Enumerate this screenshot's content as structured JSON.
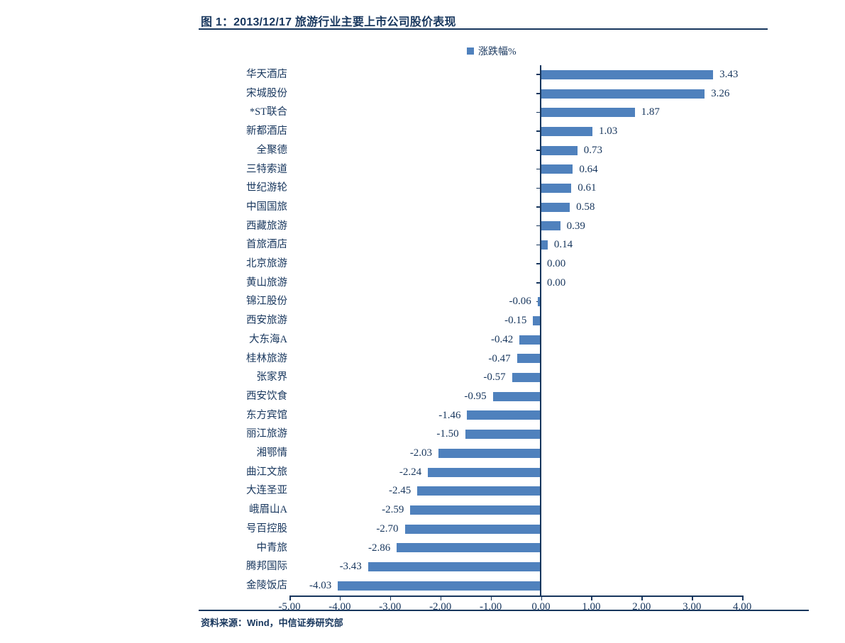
{
  "title": "图 1：2013/12/17 旅游行业主要上市公司股价表现",
  "legend": {
    "label": "涨跌幅%"
  },
  "source": "资料来源：Wind，中信证券研究部",
  "colors": {
    "bar": "#4F81BD",
    "text": "#17365D",
    "axis": "#17365D"
  },
  "chart_data": {
    "type": "bar",
    "orientation": "horizontal",
    "title": "图 1：2013/12/17 旅游行业主要上市公司股价表现",
    "legend_entries": [
      "涨跌幅%"
    ],
    "categories": [
      "华天酒店",
      "宋城股份",
      "*ST联合",
      "新都酒店",
      "全聚德",
      "三特索道",
      "世纪游轮",
      "中国国旅",
      "西藏旅游",
      "首旅酒店",
      "北京旅游",
      "黄山旅游",
      "锦江股份",
      "西安旅游",
      "大东海A",
      "桂林旅游",
      "张家界",
      "西安饮食",
      "东方宾馆",
      "丽江旅游",
      "湘鄂情",
      "曲江文旅",
      "大连圣亚",
      "峨眉山A",
      "号百控股",
      "中青旅",
      "腾邦国际",
      "金陵饭店"
    ],
    "values": [
      3.43,
      3.26,
      1.87,
      1.03,
      0.73,
      0.64,
      0.61,
      0.58,
      0.39,
      0.14,
      0.0,
      0.0,
      -0.06,
      -0.15,
      -0.42,
      -0.47,
      -0.57,
      -0.95,
      -1.46,
      -1.5,
      -2.03,
      -2.24,
      -2.45,
      -2.59,
      -2.7,
      -2.86,
      -3.43,
      -4.03
    ],
    "xlabel": "",
    "ylabel": "",
    "xlim": [
      -5,
      4
    ],
    "xtick_labels": [
      "-5.00",
      "-4.00",
      "-3.00",
      "-2.00",
      "-1.00",
      "0.00",
      "1.00",
      "2.00",
      "3.00",
      "4.00"
    ],
    "grid": false,
    "legend_position": "top-center",
    "value_labels": "outside-end, two decimals"
  }
}
